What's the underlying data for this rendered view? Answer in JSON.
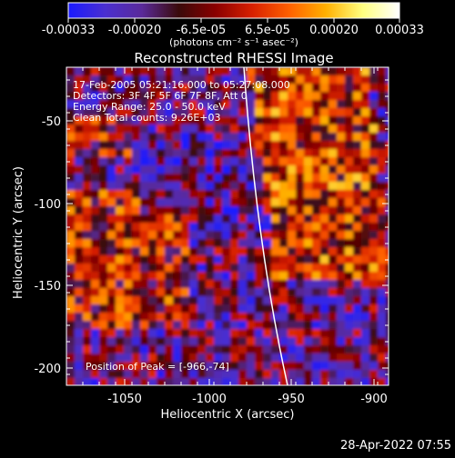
{
  "colorbar": {
    "tick_labels": [
      "-0.00033",
      "-0.00020",
      "-6.5e-05",
      "6.5e-05",
      "0.00020",
      "0.00033"
    ],
    "units_label": "(photons cm⁻² s⁻¹ asec⁻²)",
    "colors": [
      "#1a1aff",
      "#4a2fd0",
      "#5a2a9a",
      "#3a0a0a",
      "#8a0000",
      "#d82000",
      "#ff6000",
      "#ffb000",
      "#ffff80",
      "#ffffff"
    ]
  },
  "image": {
    "title": "Reconstructed RHESSI Image",
    "info_lines": [
      "17-Feb-2005 05:21:16.000 to 05:27:08.000",
      "Detectors: 3F 4F 5F 6F 7F 8F, Att 0",
      "Energy Range: 25.0 - 50.0 keV",
      "Clean     Total counts: 9.26E+03"
    ],
    "peak_label": "Position of Peak = [-966,-74]",
    "xlabel": "Heliocentric X (arcsec)",
    "ylabel": "Heliocentric Y (arcsec)",
    "x_ticks": [
      "-1050",
      "-1000",
      "-950",
      "-900"
    ],
    "y_ticks": [
      "-50",
      "-100",
      "-150",
      "-200"
    ]
  },
  "timestamp": "28-Apr-2022 07:55"
}
